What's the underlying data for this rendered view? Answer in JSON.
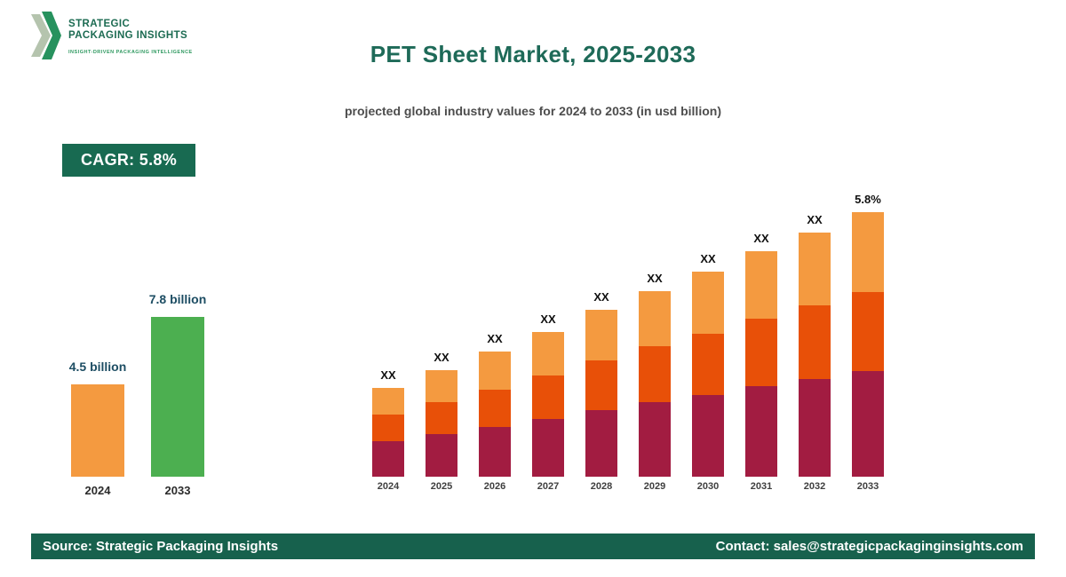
{
  "logo": {
    "line1": "STRATEGIC",
    "line2": "PACKAGING INSIGHTS",
    "tagline": "INSIGHT-DRIVEN PACKAGING INTELLIGENCE"
  },
  "header": {
    "title": "PET Sheet Market, 2025-2033",
    "subtitle": "projected global industry values for 2024 to 2033 (in usd billion)"
  },
  "cagr": {
    "label": "CAGR: 5.8%"
  },
  "footer": {
    "source": "Source: Strategic Packaging Insights",
    "contact": "Contact: sales@strategicpackaginginsights.com"
  },
  "colors": {
    "brand_green": "#186a51",
    "title_green": "#1e6a58",
    "summary_orange": "#f49a40",
    "summary_green": "#4caf50",
    "stack_bottom_maroon": "#a21c41",
    "stack_middle_orange_red": "#e85008",
    "stack_top_light_orange": "#f49a40"
  },
  "chart_data": [
    {
      "type": "bar",
      "title": "2024 vs 2033 market size",
      "categories": [
        "2024",
        "2033"
      ],
      "values": [
        4.5,
        7.8
      ],
      "value_labels": [
        "4.5 billion",
        "7.8 billion"
      ],
      "colors": [
        "#f49a40",
        "#4caf50"
      ],
      "unit": "usd billion",
      "ylim": [
        0,
        7.8
      ],
      "grid": false,
      "legend": "none"
    },
    {
      "type": "stacked-bar",
      "title": "projected values 2024-2033 (placeholder labels)",
      "categories": [
        "2024",
        "2025",
        "2026",
        "2027",
        "2028",
        "2029",
        "2030",
        "2031",
        "2032",
        "2033"
      ],
      "series": [
        {
          "name": "bottom",
          "color": "#a21c41",
          "values": [
            40,
            48,
            56,
            65,
            75,
            84,
            92,
            102,
            110,
            119
          ]
        },
        {
          "name": "middle",
          "color": "#e85008",
          "values": [
            30,
            36,
            42,
            49,
            56,
            63,
            69,
            76,
            83,
            89
          ]
        },
        {
          "name": "top",
          "color": "#f49a40",
          "values": [
            30,
            36,
            43,
            49,
            57,
            62,
            70,
            76,
            82,
            90
          ]
        }
      ],
      "totals_relative": [
        100,
        120,
        141,
        163,
        188,
        209,
        231,
        254,
        275,
        298
      ],
      "bar_labels": [
        "XX",
        "XX",
        "XX",
        "XX",
        "XX",
        "XX",
        "XX",
        "XX",
        "XX",
        "5.8%"
      ],
      "unit": "relative height; numeric values shown as XX placeholders",
      "grid": false,
      "legend": "none"
    }
  ]
}
